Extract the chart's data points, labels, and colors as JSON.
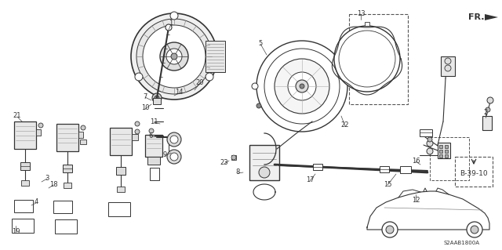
{
  "bg_color": "#ffffff",
  "fig_width": 6.4,
  "fig_height": 3.19,
  "dpi": 100,
  "diagram_code": "S2AAB1800A",
  "ref_code": "B-39-10",
  "fr_label": "FR.",
  "dark": "#333333",
  "gray": "#666666"
}
